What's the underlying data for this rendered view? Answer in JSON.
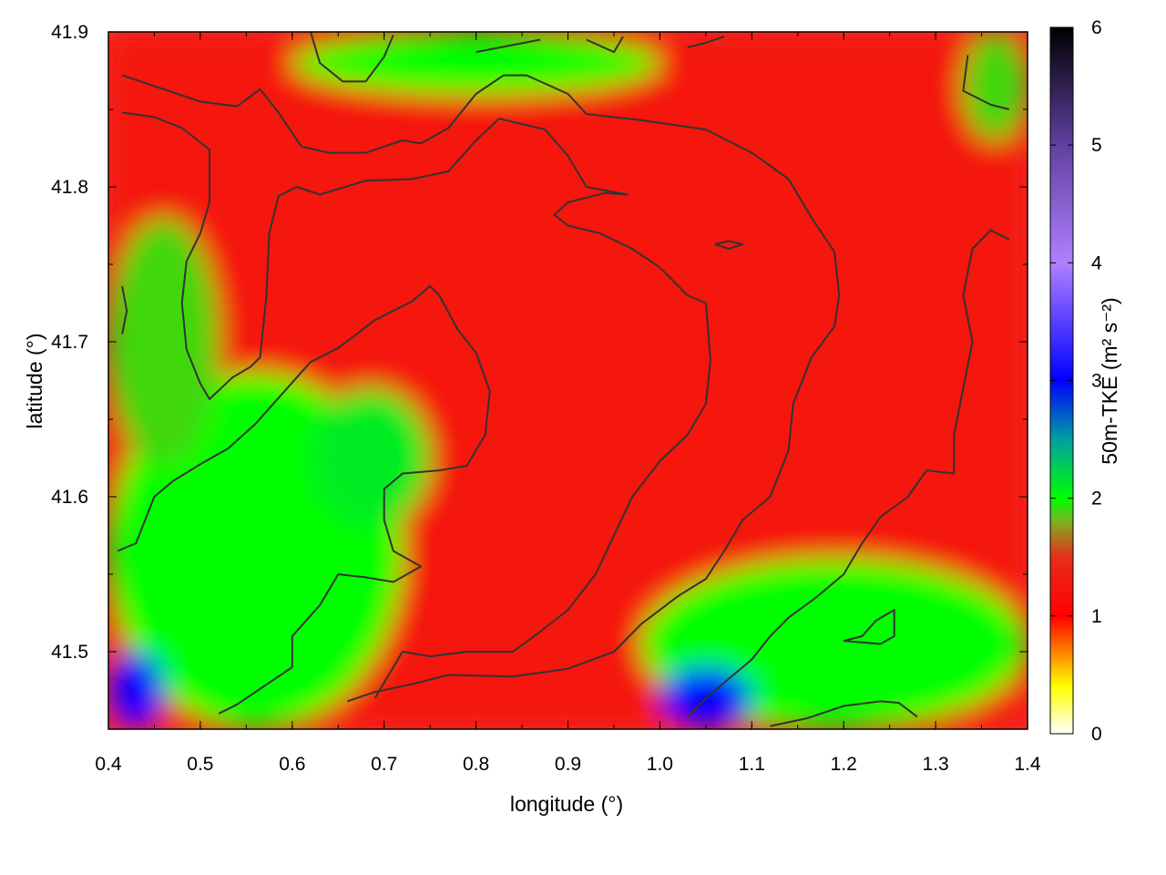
{
  "chart_data": {
    "type": "heatmap",
    "title": "",
    "xlabel": "longitude (°)",
    "ylabel": "latitude (°)",
    "colorbar_label": "50m-TKE (m² s⁻²)",
    "xlim": [
      0.4,
      1.4
    ],
    "ylim": [
      41.45,
      41.9
    ],
    "x_ticks": [
      "0.4",
      "0.5",
      "0.6",
      "0.7",
      "0.8",
      "0.9",
      "1.0",
      "1.1",
      "1.2",
      "1.3",
      "1.4"
    ],
    "y_ticks": [
      "41.5",
      "41.6",
      "41.7",
      "41.8",
      "41.9"
    ],
    "colorbar_range": [
      0,
      6
    ],
    "colorbar_ticks": [
      "0",
      "1",
      "2",
      "3",
      "4",
      "5",
      "6"
    ],
    "colormap": [
      {
        "value": 0.0,
        "color": "#ffffff"
      },
      {
        "value": 0.4,
        "color": "#ffff00"
      },
      {
        "value": 1.0,
        "color": "#ff0000"
      },
      {
        "value": 1.5,
        "color": "#e62e1a"
      },
      {
        "value": 1.8,
        "color": "#7faf20"
      },
      {
        "value": 2.0,
        "color": "#00ff00"
      },
      {
        "value": 2.5,
        "color": "#00a0a0"
      },
      {
        "value": 3.0,
        "color": "#0000ff"
      },
      {
        "value": 4.0,
        "color": "#b080ff"
      },
      {
        "value": 5.0,
        "color": "#6040a0"
      },
      {
        "value": 6.0,
        "color": "#000000"
      }
    ],
    "field_regions": [
      {
        "name": "background",
        "value": 1.2
      },
      {
        "name": "southwest-green-zone",
        "value": 2.0,
        "lon": [
          0.4,
          0.72
        ],
        "lat": [
          41.45,
          41.68
        ]
      },
      {
        "name": "west-green-strip",
        "value": 1.9,
        "lon": [
          0.4,
          0.52
        ],
        "lat": [
          41.62,
          41.78
        ]
      },
      {
        "name": "center-green-patch",
        "value": 2.1,
        "lon": [
          0.62,
          0.75
        ],
        "lat": [
          41.58,
          41.67
        ]
      },
      {
        "name": "southeast-green-zone",
        "value": 2.0,
        "lon": [
          0.98,
          1.4
        ],
        "lat": [
          41.45,
          41.56
        ]
      },
      {
        "name": "southwest-blue-core",
        "value": 3.0,
        "lon": [
          0.4,
          0.46
        ],
        "lat": [
          41.45,
          41.5
        ]
      },
      {
        "name": "southeast-blue-core",
        "value": 3.0,
        "lon": [
          1.0,
          1.1
        ],
        "lat": [
          41.45,
          41.49
        ]
      },
      {
        "name": "north-green-edge",
        "value": 2.0,
        "lon": [
          0.6,
          1.0
        ],
        "lat": [
          41.86,
          41.9
        ]
      },
      {
        "name": "east-green-edge",
        "value": 1.9,
        "lon": [
          1.33,
          1.4
        ],
        "lat": [
          41.83,
          41.9
        ]
      }
    ],
    "contour_lines": [
      [
        [
          0.415,
          41.872
        ],
        [
          0.465,
          41.862
        ],
        [
          0.5,
          41.855
        ],
        [
          0.54,
          41.852
        ],
        [
          0.565,
          41.863
        ],
        [
          0.585,
          41.848
        ],
        [
          0.61,
          41.826
        ],
        [
          0.64,
          41.822
        ],
        [
          0.68,
          41.822
        ],
        [
          0.72,
          41.83
        ],
        [
          0.74,
          41.828
        ],
        [
          0.77,
          41.838
        ],
        [
          0.8,
          41.86
        ],
        [
          0.83,
          41.872
        ],
        [
          0.855,
          41.872
        ],
        [
          0.9,
          41.86
        ],
        [
          0.92,
          41.847
        ],
        [
          0.98,
          41.843
        ],
        [
          1.05,
          41.837
        ],
        [
          1.1,
          41.822
        ],
        [
          1.14,
          41.805
        ],
        [
          1.165,
          41.78
        ],
        [
          1.19,
          41.758
        ],
        [
          1.195,
          41.73
        ],
        [
          1.19,
          41.71
        ],
        [
          1.165,
          41.69
        ],
        [
          1.145,
          41.66
        ],
        [
          1.14,
          41.63
        ],
        [
          1.12,
          41.6
        ],
        [
          1.09,
          41.585
        ],
        [
          1.07,
          41.565
        ],
        [
          1.05,
          41.547
        ],
        [
          1.02,
          41.536
        ],
        [
          0.98,
          41.518
        ],
        [
          0.95,
          41.5
        ],
        [
          0.9,
          41.489
        ],
        [
          0.84,
          41.484
        ],
        [
          0.77,
          41.485
        ],
        [
          0.73,
          41.479
        ],
        [
          0.69,
          41.474
        ],
        [
          0.66,
          41.468
        ]
      ],
      [
        [
          0.415,
          41.848
        ],
        [
          0.45,
          41.845
        ],
        [
          0.48,
          41.838
        ],
        [
          0.51,
          41.824
        ],
        [
          0.51,
          41.79
        ],
        [
          0.5,
          41.77
        ],
        [
          0.485,
          41.752
        ],
        [
          0.48,
          41.725
        ],
        [
          0.485,
          41.695
        ],
        [
          0.5,
          41.673
        ],
        [
          0.51,
          41.663
        ],
        [
          0.535,
          41.677
        ],
        [
          0.555,
          41.684
        ],
        [
          0.565,
          41.69
        ],
        [
          0.572,
          41.73
        ],
        [
          0.575,
          41.77
        ],
        [
          0.585,
          41.794
        ],
        [
          0.605,
          41.8
        ],
        [
          0.63,
          41.795
        ],
        [
          0.68,
          41.804
        ],
        [
          0.73,
          41.805
        ],
        [
          0.77,
          41.81
        ],
        [
          0.8,
          41.83
        ],
        [
          0.825,
          41.844
        ],
        [
          0.875,
          41.837
        ],
        [
          0.9,
          41.82
        ],
        [
          0.92,
          41.8
        ],
        [
          0.965,
          41.795
        ],
        [
          0.94,
          41.796
        ],
        [
          0.9,
          41.79
        ],
        [
          0.885,
          41.782
        ],
        [
          0.9,
          41.775
        ],
        [
          0.935,
          41.77
        ],
        [
          0.97,
          41.76
        ],
        [
          1.0,
          41.748
        ],
        [
          1.03,
          41.73
        ],
        [
          1.05,
          41.725
        ],
        [
          1.055,
          41.688
        ],
        [
          1.05,
          41.66
        ],
        [
          1.03,
          41.64
        ],
        [
          1.0,
          41.623
        ],
        [
          0.97,
          41.6
        ],
        [
          0.95,
          41.575
        ],
        [
          0.93,
          41.55
        ],
        [
          0.9,
          41.527
        ],
        [
          0.87,
          41.513
        ],
        [
          0.84,
          41.5
        ],
        [
          0.79,
          41.5
        ],
        [
          0.75,
          41.497
        ],
        [
          0.72,
          41.5
        ],
        [
          0.7,
          41.48
        ],
        [
          0.69,
          41.47
        ]
      ],
      [
        [
          0.41,
          41.565
        ],
        [
          0.43,
          41.57
        ],
        [
          0.45,
          41.6
        ],
        [
          0.47,
          41.61
        ],
        [
          0.5,
          41.621
        ],
        [
          0.53,
          41.631
        ],
        [
          0.56,
          41.647
        ],
        [
          0.59,
          41.667
        ],
        [
          0.62,
          41.687
        ],
        [
          0.65,
          41.696
        ],
        [
          0.69,
          41.714
        ],
        [
          0.73,
          41.726
        ],
        [
          0.75,
          41.736
        ],
        [
          0.76,
          41.73
        ],
        [
          0.78,
          41.708
        ],
        [
          0.8,
          41.693
        ],
        [
          0.815,
          41.668
        ],
        [
          0.81,
          41.64
        ],
        [
          0.79,
          41.62
        ],
        [
          0.76,
          41.617
        ],
        [
          0.72,
          41.615
        ],
        [
          0.7,
          41.605
        ],
        [
          0.7,
          41.585
        ],
        [
          0.71,
          41.565
        ],
        [
          0.74,
          41.555
        ],
        [
          0.71,
          41.545
        ],
        [
          0.68,
          41.548
        ],
        [
          0.65,
          41.55
        ],
        [
          0.63,
          41.53
        ],
        [
          0.6,
          41.51
        ],
        [
          0.6,
          41.49
        ],
        [
          0.57,
          41.478
        ],
        [
          0.54,
          41.466
        ],
        [
          0.52,
          41.46
        ]
      ],
      [
        [
          0.62,
          41.9
        ],
        [
          0.63,
          41.88
        ],
        [
          0.655,
          41.868
        ],
        [
          0.68,
          41.868
        ],
        [
          0.7,
          41.884
        ],
        [
          0.71,
          41.898
        ]
      ],
      [
        [
          0.8,
          41.887
        ],
        [
          0.87,
          41.895
        ]
      ],
      [
        [
          0.92,
          41.895
        ],
        [
          0.95,
          41.887
        ],
        [
          0.96,
          41.897
        ]
      ],
      [
        [
          1.03,
          41.89
        ],
        [
          1.05,
          41.893
        ],
        [
          1.07,
          41.897
        ]
      ],
      [
        [
          1.335,
          41.885
        ],
        [
          1.33,
          41.862
        ],
        [
          1.36,
          41.853
        ],
        [
          1.38,
          41.85
        ]
      ],
      [
        [
          1.06,
          41.763
        ],
        [
          1.075,
          41.765
        ],
        [
          1.09,
          41.763
        ],
        [
          1.075,
          41.76
        ],
        [
          1.06,
          41.763
        ]
      ],
      [
        [
          1.38,
          41.766
        ],
        [
          1.36,
          41.772
        ],
        [
          1.34,
          41.76
        ],
        [
          1.33,
          41.73
        ],
        [
          1.34,
          41.7
        ],
        [
          1.33,
          41.67
        ],
        [
          1.32,
          41.64
        ],
        [
          1.32,
          41.615
        ],
        [
          1.29,
          41.617
        ],
        [
          1.27,
          41.6
        ],
        [
          1.24,
          41.587
        ],
        [
          1.22,
          41.57
        ],
        [
          1.2,
          41.55
        ],
        [
          1.17,
          41.535
        ],
        [
          1.14,
          41.522
        ],
        [
          1.12,
          41.51
        ],
        [
          1.1,
          41.495
        ],
        [
          1.07,
          41.48
        ],
        [
          1.05,
          41.47
        ],
        [
          1.03,
          41.458
        ]
      ],
      [
        [
          1.12,
          41.452
        ],
        [
          1.16,
          41.457
        ],
        [
          1.2,
          41.465
        ],
        [
          1.24,
          41.468
        ],
        [
          1.26,
          41.467
        ],
        [
          1.28,
          41.458
        ]
      ],
      [
        [
          1.2,
          41.507
        ],
        [
          1.24,
          41.505
        ],
        [
          1.255,
          41.51
        ],
        [
          1.255,
          41.527
        ],
        [
          1.235,
          41.52
        ],
        [
          1.22,
          41.51
        ],
        [
          1.2,
          41.507
        ]
      ],
      [
        [
          0.415,
          41.736
        ],
        [
          0.42,
          41.72
        ],
        [
          0.415,
          41.705
        ]
      ]
    ]
  }
}
